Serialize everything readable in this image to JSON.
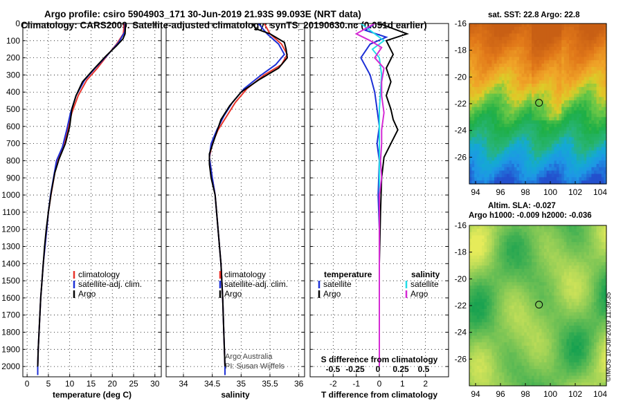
{
  "title_line1": "Argo profile: csiro 5904903_171 30-Jun-2019 21.93S 99.093E (NRT data)",
  "title_line2": "Climatology: CARS2009. Satellite-adjusted climatology: synTS_20190630.nc (0.051d earlier)",
  "map_sst_title": "sat. SST: 22.8 Argo: 22.8",
  "map_sla_title1": "Altim. SLA: -0.027",
  "map_sla_title2": "Argo h1000: -0.009 h2000: -0.036",
  "stamp": "©IMOS 10-Jul-2019 11:39:35",
  "colors": {
    "climatology": "#e8332a",
    "satellite": "#1c2fd6",
    "argo": "#000000",
    "sat_salinity": "#22dde8",
    "argo_salinity": "#d42ad4"
  },
  "chart_data": [
    {
      "type": "line",
      "xlabel": "temperature (deg C)",
      "ylabel": "",
      "xlim": [
        -1,
        31.5
      ],
      "ylim": [
        2060,
        0
      ],
      "x_ticks": [
        0,
        5,
        10,
        15,
        20,
        25,
        30
      ],
      "y_ticks": [
        0,
        100,
        200,
        300,
        400,
        500,
        600,
        700,
        800,
        900,
        1000,
        1100,
        1200,
        1300,
        1400,
        1500,
        1600,
        1700,
        1800,
        1900,
        2000
      ],
      "grid": true,
      "legend": [
        "climatology",
        "satellite-adj. clim.",
        "Argo"
      ],
      "series": [
        {
          "name": "climatology",
          "color": "#e8332a",
          "points": [
            [
              22.8,
              0
            ],
            [
              22.6,
              60
            ],
            [
              21,
              120
            ],
            [
              19,
              180
            ],
            [
              16.5,
              260
            ],
            [
              14,
              330
            ],
            [
              12,
              420
            ],
            [
              10.5,
              520
            ],
            [
              9.5,
              620
            ],
            [
              8.6,
              720
            ],
            [
              7,
              800
            ],
            [
              6.3,
              900
            ],
            [
              5.6,
              1000
            ],
            [
              5,
              1100
            ],
            [
              4.6,
              1200
            ],
            [
              4.2,
              1300
            ],
            [
              3.8,
              1400
            ],
            [
              3.5,
              1500
            ],
            [
              3.2,
              1600
            ],
            [
              3,
              1700
            ],
            [
              2.8,
              1800
            ],
            [
              2.6,
              1900
            ],
            [
              2.5,
              2000
            ],
            [
              2.5,
              2050
            ]
          ]
        },
        {
          "name": "satellite-adj. clim.",
          "color": "#1c2fd6",
          "points": [
            [
              23,
              0
            ],
            [
              22.9,
              50
            ],
            [
              21.5,
              110
            ],
            [
              19,
              180
            ],
            [
              16,
              260
            ],
            [
              13.5,
              330
            ],
            [
              11.5,
              420
            ],
            [
              10.2,
              520
            ],
            [
              9.3,
              620
            ],
            [
              8.3,
              720
            ],
            [
              6.9,
              800
            ],
            [
              6.2,
              900
            ],
            [
              5.5,
              1000
            ],
            [
              5,
              1100
            ],
            [
              4.6,
              1200
            ],
            [
              4.2,
              1300
            ],
            [
              3.8,
              1400
            ],
            [
              3.5,
              1500
            ],
            [
              3.2,
              1600
            ],
            [
              3,
              1700
            ],
            [
              2.8,
              1800
            ],
            [
              2.6,
              1900
            ],
            [
              2.5,
              2000
            ],
            [
              2.5,
              2050
            ]
          ]
        },
        {
          "name": "Argo",
          "color": "#000000",
          "points": [
            [
              23.1,
              5
            ],
            [
              23,
              60
            ],
            [
              22.5,
              90
            ],
            [
              21,
              130
            ],
            [
              18.5,
              190
            ],
            [
              15.5,
              270
            ],
            [
              13,
              340
            ],
            [
              11.5,
              420
            ],
            [
              10.5,
              500
            ],
            [
              10,
              600
            ],
            [
              9,
              700
            ],
            [
              7.5,
              790
            ],
            [
              6.5,
              870
            ],
            [
              5.7,
              980
            ],
            [
              5,
              1100
            ],
            [
              4.5,
              1200
            ],
            [
              4.1,
              1300
            ],
            [
              3.8,
              1400
            ],
            [
              3.5,
              1500
            ],
            [
              3.2,
              1600
            ],
            [
              3,
              1700
            ],
            [
              2.8,
              1800
            ],
            [
              2.6,
              1900
            ],
            [
              2.5,
              2000
            ]
          ]
        }
      ]
    },
    {
      "type": "line",
      "xlabel": "salinity",
      "ylabel": "",
      "xlim": [
        33.7,
        36.1
      ],
      "ylim": [
        2060,
        0
      ],
      "x_ticks": [
        34,
        34.5,
        35,
        35.5,
        36
      ],
      "grid": true,
      "legend": [
        "climatology",
        "satellite-adj. clim.",
        "Argo"
      ],
      "series": [
        {
          "name": "climatology",
          "color": "#e8332a",
          "points": [
            [
              35.4,
              0
            ],
            [
              35.5,
              60
            ],
            [
              35.7,
              120
            ],
            [
              35.8,
              180
            ],
            [
              35.7,
              240
            ],
            [
              35.4,
              300
            ],
            [
              35.1,
              380
            ],
            [
              34.9,
              460
            ],
            [
              34.75,
              540
            ],
            [
              34.6,
              620
            ],
            [
              34.5,
              700
            ],
            [
              34.45,
              780
            ],
            [
              34.5,
              900
            ],
            [
              34.55,
              1000
            ],
            [
              34.6,
              1200
            ],
            [
              34.65,
              1400
            ],
            [
              34.68,
              1600
            ],
            [
              34.7,
              1800
            ],
            [
              34.72,
              2000
            ],
            [
              34.72,
              2050
            ]
          ]
        },
        {
          "name": "satellite-adj. clim.",
          "color": "#1c2fd6",
          "points": [
            [
              35.3,
              0
            ],
            [
              35.45,
              60
            ],
            [
              35.65,
              120
            ],
            [
              35.75,
              180
            ],
            [
              35.6,
              240
            ],
            [
              35.35,
              300
            ],
            [
              35.05,
              380
            ],
            [
              34.85,
              460
            ],
            [
              34.7,
              540
            ],
            [
              34.58,
              620
            ],
            [
              34.48,
              700
            ],
            [
              34.45,
              780
            ],
            [
              34.5,
              900
            ],
            [
              34.55,
              1000
            ],
            [
              34.6,
              1200
            ],
            [
              34.65,
              1400
            ],
            [
              34.68,
              1600
            ],
            [
              34.7,
              1800
            ],
            [
              34.72,
              2000
            ],
            [
              34.72,
              2050
            ]
          ]
        },
        {
          "name": "Argo",
          "color": "#000000",
          "points": [
            [
              35.2,
              0
            ],
            [
              35.25,
              30
            ],
            [
              35.5,
              60
            ],
            [
              35.75,
              110
            ],
            [
              35.78,
              150
            ],
            [
              35.8,
              200
            ],
            [
              35.65,
              260
            ],
            [
              35.3,
              330
            ],
            [
              35,
              400
            ],
            [
              34.8,
              480
            ],
            [
              34.65,
              560
            ],
            [
              34.55,
              660
            ],
            [
              34.45,
              760
            ],
            [
              34.45,
              820
            ],
            [
              34.48,
              900
            ],
            [
              34.55,
              1000
            ],
            [
              34.6,
              1200
            ],
            [
              34.65,
              1400
            ],
            [
              34.68,
              1600
            ],
            [
              34.7,
              1800
            ],
            [
              34.72,
              2000
            ]
          ]
        }
      ],
      "annotations": [
        "Argo Australia",
        "PI: Susan Wijffels"
      ]
    },
    {
      "type": "line",
      "xlabel": "T difference from climatology",
      "xlabel2": "S difference from climatology",
      "xlim": [
        -3,
        3
      ],
      "x_ticks": [
        -2,
        -1,
        0,
        1,
        2
      ],
      "x2_ticks": [
        "-0.5",
        "-0.25",
        "0",
        "0.25",
        "0.5"
      ],
      "ylim": [
        2060,
        0
      ],
      "grid": true,
      "legend_left": [
        "temperature",
        "satellite",
        "Argo"
      ],
      "legend_right": [
        "salinity",
        "satellite",
        "Argo"
      ],
      "series": [
        {
          "name": "satellite",
          "color": "#1c2fd6",
          "points": [
            [
              -0.2,
              0
            ],
            [
              -0.6,
              40
            ],
            [
              0.3,
              80
            ],
            [
              -0.4,
              120
            ],
            [
              -0.8,
              200
            ],
            [
              -0.4,
              300
            ],
            [
              -0.2,
              400
            ],
            [
              -0.1,
              500
            ],
            [
              0,
              600
            ],
            [
              -0.1,
              700
            ],
            [
              0,
              800
            ],
            [
              -0.05,
              1000
            ],
            [
              0,
              1200
            ],
            [
              0,
              1400
            ],
            [
              0,
              1600
            ],
            [
              0,
              1800
            ],
            [
              0,
              2000
            ]
          ]
        },
        {
          "name": "Argo",
          "color": "#000000",
          "points": [
            [
              0,
              0
            ],
            [
              1.2,
              60
            ],
            [
              0.3,
              100
            ],
            [
              0.6,
              180
            ],
            [
              0.3,
              260
            ],
            [
              0.5,
              340
            ],
            [
              0.3,
              420
            ],
            [
              0.5,
              500
            ],
            [
              0.6,
              560
            ],
            [
              0.8,
              620
            ],
            [
              0.5,
              700
            ],
            [
              0.2,
              780
            ],
            [
              0.1,
              900
            ],
            [
              0.05,
              1100
            ],
            [
              0,
              1400
            ],
            [
              0,
              1700
            ],
            [
              0,
              2000
            ]
          ]
        },
        {
          "name": "satellite",
          "color": "#22dde8",
          "points": [
            [
              -0.8,
              0
            ],
            [
              -0.3,
              50
            ],
            [
              0.2,
              100
            ],
            [
              -0.3,
              150
            ],
            [
              0,
              200
            ],
            [
              0.1,
              300
            ],
            [
              0.05,
              400
            ],
            [
              0,
              500
            ],
            [
              0,
              700
            ],
            [
              0,
              1000
            ],
            [
              0,
              1500
            ],
            [
              0,
              2000
            ]
          ]
        },
        {
          "name": "Argo",
          "color": "#d42ad4",
          "points": [
            [
              -0.2,
              0
            ],
            [
              -1,
              60
            ],
            [
              -0.4,
              100
            ],
            [
              0.1,
              140
            ],
            [
              -0.2,
              200
            ],
            [
              0.2,
              260
            ],
            [
              0.1,
              340
            ],
            [
              0.1,
              420
            ],
            [
              0.2,
              520
            ],
            [
              0.1,
              620
            ],
            [
              0.1,
              700
            ],
            [
              0.05,
              800
            ],
            [
              0.1,
              900
            ],
            [
              0,
              1000
            ],
            [
              0,
              1200
            ],
            [
              0,
              1400
            ],
            [
              0,
              1600
            ],
            [
              0,
              2000
            ]
          ]
        }
      ]
    },
    {
      "type": "heatmap",
      "title": "sat. SST: 22.8 Argo: 22.8",
      "xlim": [
        93.5,
        104.5
      ],
      "ylim": [
        -28,
        -16
      ],
      "x_ticks": [
        94,
        96,
        98,
        100,
        102,
        104
      ],
      "y_ticks": [
        -16,
        -18,
        -20,
        -22,
        -24,
        -26
      ],
      "marker": {
        "lon": 99.093,
        "lat": -21.93
      }
    },
    {
      "type": "heatmap",
      "title": "Altim. SLA: -0.027",
      "subtitle": "Argo h1000: -0.009 h2000: -0.036",
      "xlim": [
        93.5,
        104.5
      ],
      "ylim": [
        -28,
        -16
      ],
      "x_ticks": [
        94,
        96,
        98,
        100,
        102,
        104
      ],
      "y_ticks": [
        -16,
        -18,
        -20,
        -22,
        -24,
        -26
      ],
      "marker": {
        "lon": 99.093,
        "lat": -21.93
      }
    }
  ]
}
